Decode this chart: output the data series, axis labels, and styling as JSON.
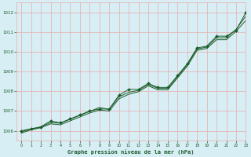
{
  "title": "Graphe pression niveau de la mer (hPa)",
  "bg_color": "#d8eef5",
  "grid_color": "#e8aaaa",
  "line_color": "#1a5c2a",
  "xlim": [
    -0.5,
    23
  ],
  "ylim": [
    1005.5,
    1012.5
  ],
  "yticks": [
    1006,
    1007,
    1008,
    1009,
    1010,
    1011,
    1012
  ],
  "xticks": [
    0,
    1,
    2,
    3,
    4,
    5,
    6,
    7,
    8,
    9,
    10,
    11,
    12,
    13,
    14,
    15,
    16,
    17,
    18,
    19,
    20,
    21,
    22,
    23
  ],
  "series_marker": [
    1006.0,
    1006.1,
    1006.2,
    1006.5,
    1006.4,
    1006.6,
    1006.8,
    1007.0,
    1007.1,
    1007.1,
    1007.8,
    1008.1,
    1008.1,
    1008.4,
    1008.2,
    1008.2,
    1008.8,
    1009.4,
    1010.2,
    1010.3,
    1010.8,
    1010.8,
    1011.1,
    1012.0
  ],
  "series_smooth1": [
    1005.95,
    1006.08,
    1006.18,
    1006.42,
    1006.38,
    1006.58,
    1006.78,
    1006.98,
    1007.18,
    1007.08,
    1007.72,
    1007.95,
    1008.05,
    1008.35,
    1008.15,
    1008.15,
    1008.75,
    1009.35,
    1010.15,
    1010.25,
    1010.72,
    1010.72,
    1011.15,
    1011.82
  ],
  "series_smooth2": [
    1005.88,
    1006.05,
    1006.15,
    1006.35,
    1006.3,
    1006.5,
    1006.7,
    1006.9,
    1007.05,
    1007.0,
    1007.62,
    1007.85,
    1007.98,
    1008.28,
    1008.08,
    1008.08,
    1008.68,
    1009.28,
    1010.08,
    1010.18,
    1010.62,
    1010.62,
    1011.05,
    1011.6
  ]
}
